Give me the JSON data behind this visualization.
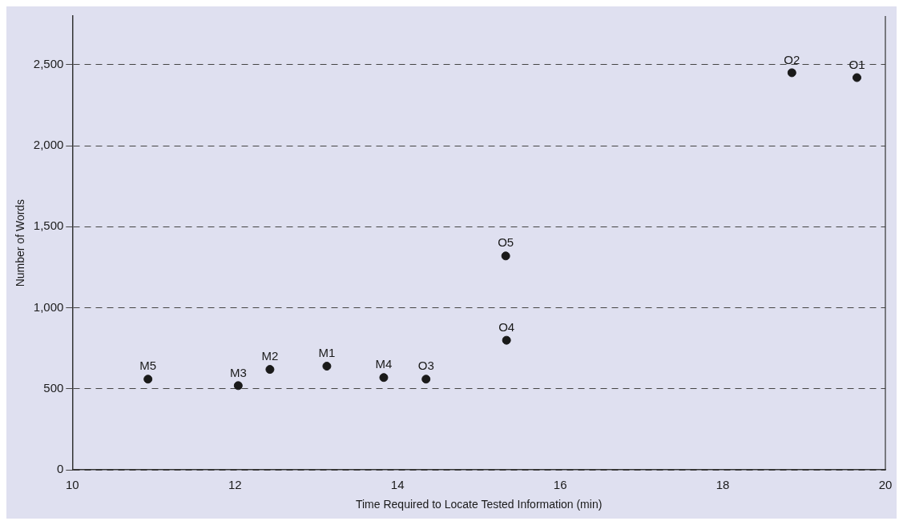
{
  "chart_data": {
    "type": "scatter",
    "xlabel": "Time Required to Locate Tested Information (min)",
    "ylabel": "Number of Words",
    "x": [
      10.93,
      12.04,
      12.43,
      13.13,
      13.83,
      14.35,
      15.33,
      15.34,
      18.85,
      19.65
    ],
    "values": [
      560,
      520,
      620,
      640,
      570,
      560,
      1320,
      800,
      2450,
      2420
    ],
    "color": "#1a1a1a",
    "marker": "circle",
    "xlim": [
      10,
      20
    ],
    "xticks": [
      10,
      12,
      14,
      16,
      18,
      20
    ],
    "ylim": [
      0,
      2800
    ],
    "yticks": [
      0,
      {
        "value": 500,
        "label": "500"
      },
      {
        "value": 1000,
        "label": "1,000"
      },
      {
        "value": 1500,
        "label": "1,500"
      },
      {
        "value": 2000,
        "label": "2,000"
      },
      {
        "value": 2500,
        "label": "2,500"
      }
    ],
    "grid": "y",
    "annotations": [
      {
        "text": "M5",
        "x": 10.93,
        "y": 560
      },
      {
        "text": "M3",
        "x": 12.04,
        "y": 520
      },
      {
        "text": "M2",
        "x": 12.43,
        "y": 620
      },
      {
        "text": "M1",
        "x": 13.13,
        "y": 640
      },
      {
        "text": "M4",
        "x": 13.83,
        "y": 570
      },
      {
        "text": "O3",
        "x": 14.35,
        "y": 560
      },
      {
        "text": "O5",
        "x": 15.33,
        "y": 1320
      },
      {
        "text": "O4",
        "x": 15.34,
        "y": 800
      },
      {
        "text": "O2",
        "x": 18.85,
        "y": 2450
      },
      {
        "text": "O1",
        "x": 19.65,
        "y": 2420
      }
    ]
  }
}
